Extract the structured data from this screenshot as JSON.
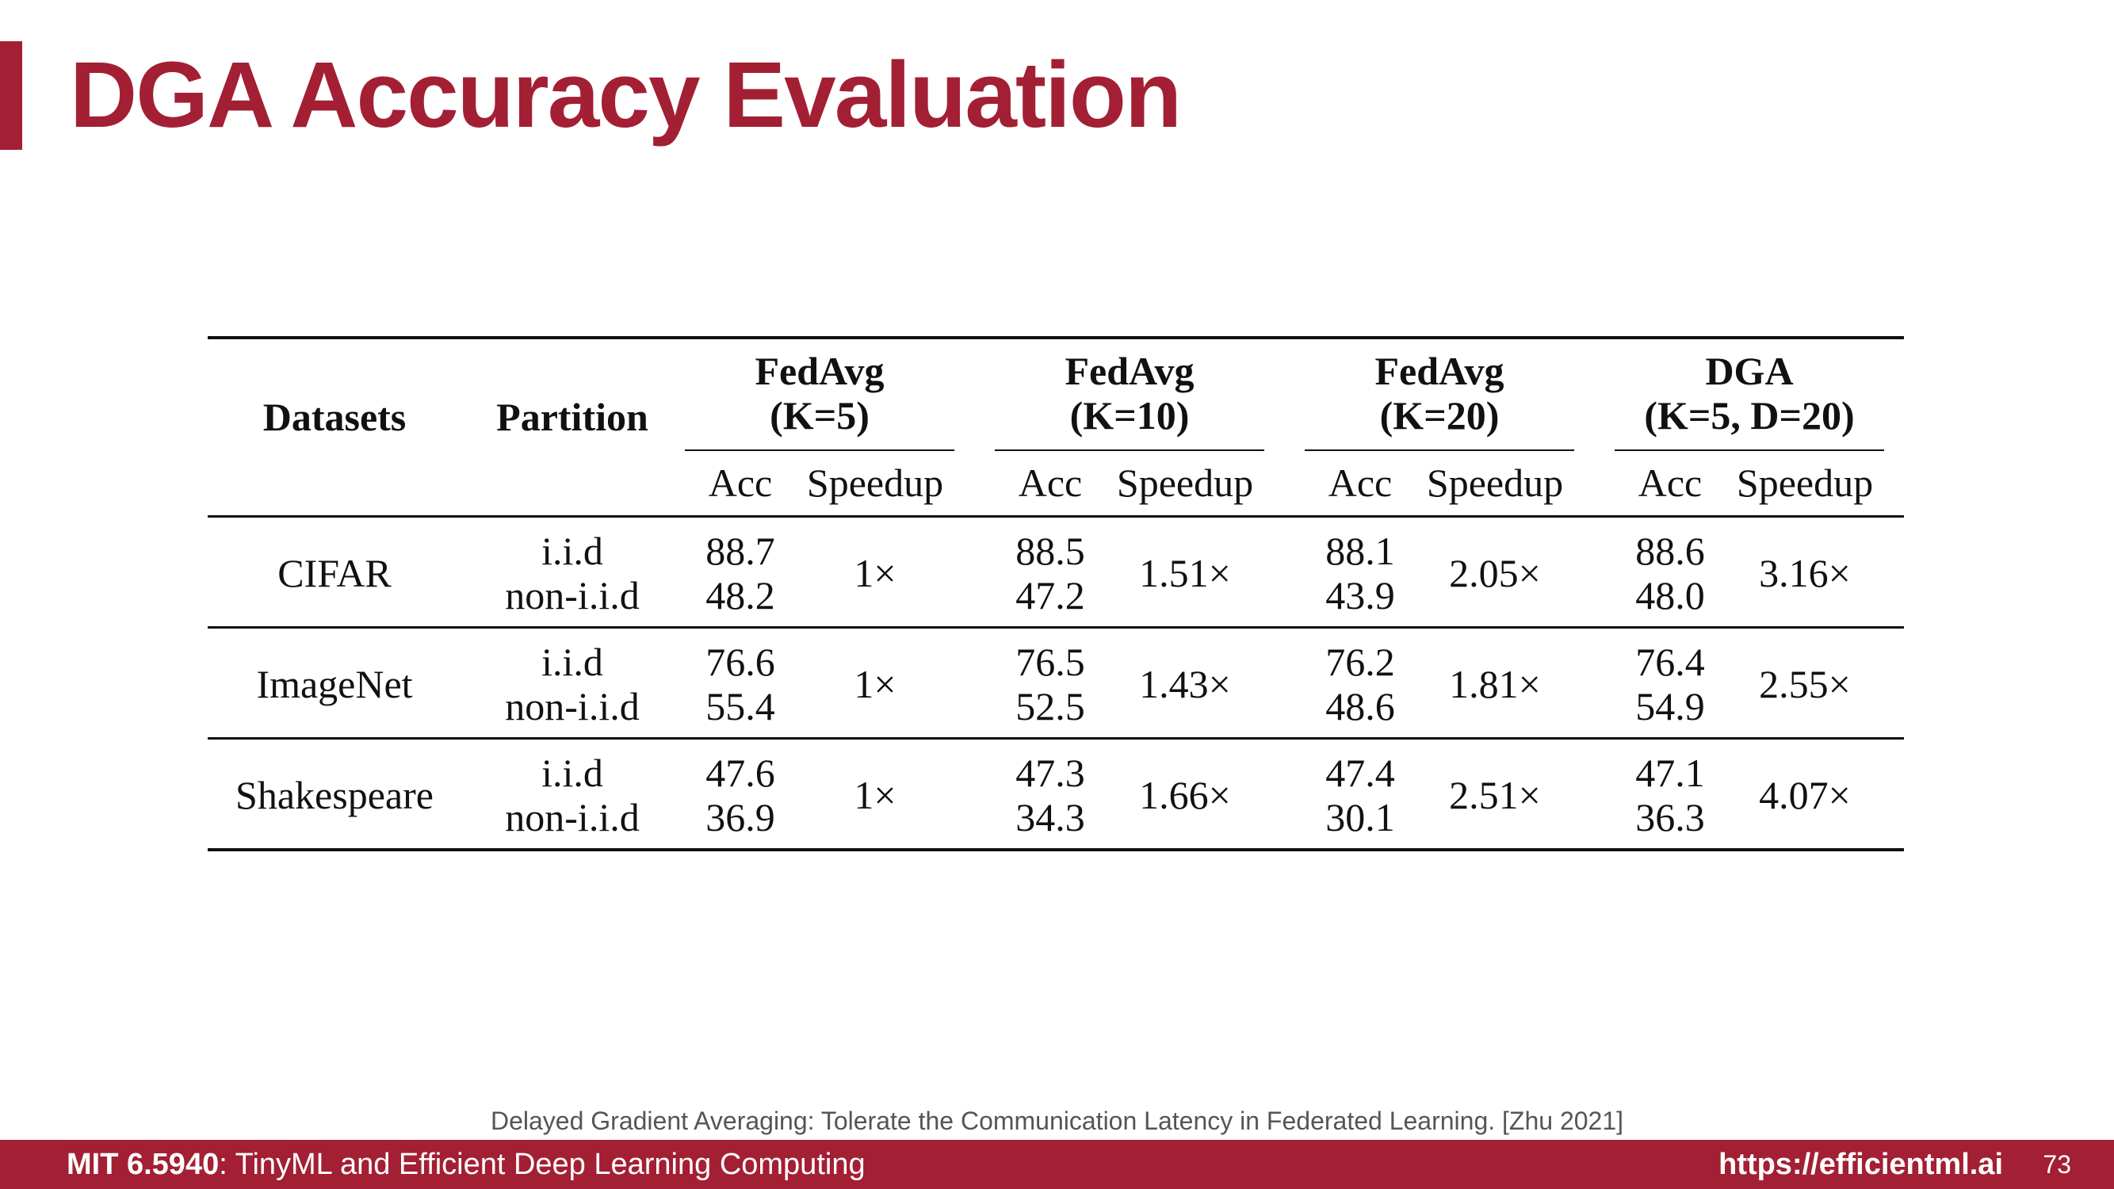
{
  "slide": {
    "title": "DGA Accuracy Evaluation",
    "citation": "Delayed Gradient Averaging: Tolerate the Communication Latency in Federated Learning. [Zhu 2021]",
    "accent_color": "#a31f34"
  },
  "table": {
    "head": {
      "datasets": "Datasets",
      "partition": "Partition",
      "groups": [
        {
          "name": "FedAvg",
          "param": "(K=5)"
        },
        {
          "name": "FedAvg",
          "param": "(K=10)"
        },
        {
          "name": "FedAvg",
          "param": "(K=20)"
        },
        {
          "name": "DGA",
          "param": "(K=5, D=20)"
        }
      ],
      "acc": "Acc",
      "speedup": "Speedup"
    },
    "rows": [
      {
        "dataset": "CIFAR",
        "partition_iid": "i.i.d",
        "partition_noniid": "non-i.i.d",
        "cells": [
          {
            "acc_iid": "88.7",
            "acc_noniid": "48.2",
            "speedup": "1×"
          },
          {
            "acc_iid": "88.5",
            "acc_noniid": "47.2",
            "speedup": "1.51×"
          },
          {
            "acc_iid": "88.1",
            "acc_noniid": "43.9",
            "speedup": "2.05×"
          },
          {
            "acc_iid": "88.6",
            "acc_noniid": "48.0",
            "speedup": "3.16×"
          }
        ]
      },
      {
        "dataset": "ImageNet",
        "partition_iid": "i.i.d",
        "partition_noniid": "non-i.i.d",
        "cells": [
          {
            "acc_iid": "76.6",
            "acc_noniid": "55.4",
            "speedup": "1×"
          },
          {
            "acc_iid": "76.5",
            "acc_noniid": "52.5",
            "speedup": "1.43×"
          },
          {
            "acc_iid": "76.2",
            "acc_noniid": "48.6",
            "speedup": "1.81×"
          },
          {
            "acc_iid": "76.4",
            "acc_noniid": "54.9",
            "speedup": "2.55×"
          }
        ]
      },
      {
        "dataset": "Shakespeare",
        "partition_iid": "i.i.d",
        "partition_noniid": "non-i.i.d",
        "cells": [
          {
            "acc_iid": "47.6",
            "acc_noniid": "36.9",
            "speedup": "1×"
          },
          {
            "acc_iid": "47.3",
            "acc_noniid": "34.3",
            "speedup": "1.66×"
          },
          {
            "acc_iid": "47.4",
            "acc_noniid": "30.1",
            "speedup": "2.51×"
          },
          {
            "acc_iid": "47.1",
            "acc_noniid": "36.3",
            "speedup": "4.07×"
          }
        ]
      }
    ]
  },
  "footer": {
    "course_code": "MIT 6.5940",
    "course_title": ": TinyML and Efficient Deep Learning Computing",
    "url": "https://efficientml.ai",
    "page_number": "73"
  }
}
